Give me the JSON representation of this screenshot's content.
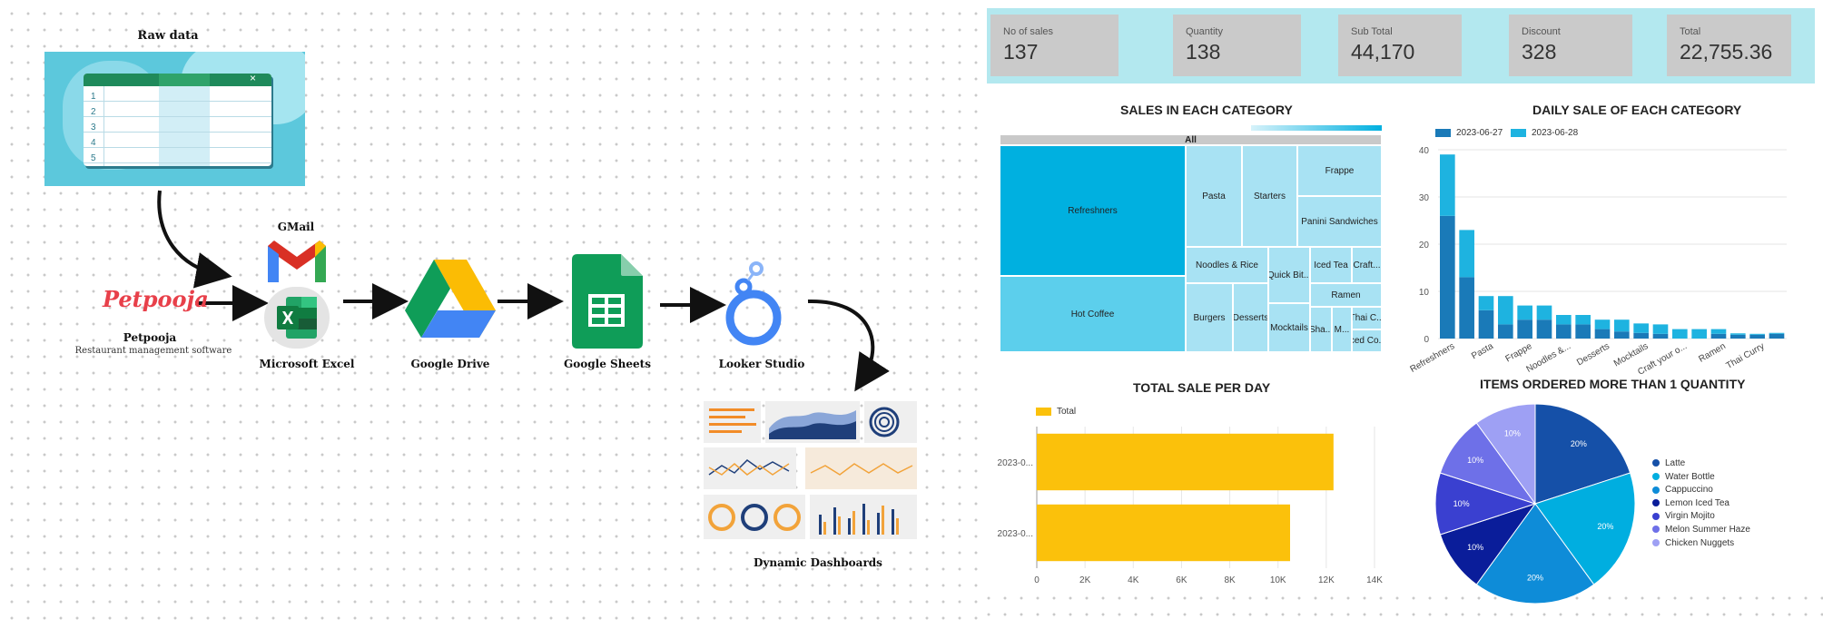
{
  "flow": {
    "raw_data_title": "Raw data",
    "sheet_rows": [
      "1",
      "2",
      "3",
      "4",
      "5"
    ],
    "sheet_close": "×",
    "gmail_label": "GMail",
    "petpooja_logo": "Petpooja",
    "petpooja_name": "Petpooja",
    "petpooja_sub": "Restaurant management software",
    "excel_label": "Microsoft Excel",
    "drive_label": "Google Drive",
    "sheets_label": "Google Sheets",
    "looker_label": "Looker Studio",
    "dashboards_label": "Dynamic Dashboards",
    "icons": [
      "gmail-icon",
      "excel-icon",
      "google-drive-icon",
      "google-sheets-icon",
      "looker-studio-icon"
    ]
  },
  "kpis": [
    {
      "label": "No of sales",
      "value": "137"
    },
    {
      "label": "Quantity",
      "value": "138"
    },
    {
      "label": "Sub Total",
      "value": "44,170"
    },
    {
      "label": "Discount",
      "value": "328"
    },
    {
      "label": "Total",
      "value": "22,755.36"
    }
  ],
  "treemap": {
    "title": "SALES IN EACH CATEGORY",
    "root": "All",
    "cells": [
      {
        "label": "Refreshners"
      },
      {
        "label": "Hot Coffee"
      },
      {
        "label": "Pasta"
      },
      {
        "label": "Starters"
      },
      {
        "label": "Frappe"
      },
      {
        "label": "Panini Sandwiches"
      },
      {
        "label": "Noodles & Rice"
      },
      {
        "label": "Quick Bit..."
      },
      {
        "label": "Iced Tea"
      },
      {
        "label": "Craft..."
      },
      {
        "label": "Burgers"
      },
      {
        "label": "Desserts"
      },
      {
        "label": "Mocktails"
      },
      {
        "label": "Ramen"
      },
      {
        "label": "Sha..."
      },
      {
        "label": "M..."
      },
      {
        "label": "Thai C..."
      },
      {
        "label": "Iced Co..."
      }
    ],
    "colors": {
      "dark": "#00b0e0",
      "mid": "#5ccfec",
      "light": "#a8e2f3"
    }
  },
  "daily": {
    "title": "DAILY SALE OF EACH CATEGORY",
    "chart_data": {
      "type": "bar",
      "stacked": true,
      "series": [
        {
          "name": "2023-06-27",
          "color": "#1a7ab8",
          "values": [
            26,
            13,
            6,
            3,
            4,
            4,
            3,
            3,
            2,
            1.5,
            1.2,
            1,
            0,
            0,
            1,
            0.8,
            0.8,
            1
          ]
        },
        {
          "name": "2023-06-28",
          "color": "#1eb3e0",
          "values": [
            13,
            10,
            3,
            6,
            3,
            3,
            2,
            2,
            2,
            2.5,
            2,
            2,
            2,
            2,
            1,
            0.3,
            0.2,
            0.2
          ]
        }
      ],
      "x_labels": [
        "Refreshners",
        "Pasta",
        "Frappe",
        "Noodles &...",
        "Desserts",
        "Mocktails",
        "Craft your o...",
        "Ramen",
        "Thai Curry"
      ],
      "yticks": [
        "0",
        "10",
        "20",
        "30",
        "40"
      ],
      "ylim": [
        0,
        40
      ],
      "grid": true,
      "legend": "top-left"
    }
  },
  "total_day": {
    "title": "TOTAL SALE PER DAY",
    "chart_data": {
      "type": "bar",
      "orientation": "horizontal",
      "series": [
        {
          "name": "Total",
          "color": "#fbc10b",
          "values": [
            12300,
            10500
          ]
        }
      ],
      "categories": [
        "2023-0...",
        "2023-0..."
      ],
      "xticks": [
        "0",
        "2K",
        "4K",
        "6K",
        "8K",
        "10K",
        "12K",
        "14K"
      ],
      "xlim": [
        0,
        14000
      ],
      "grid": true,
      "legend": "top-left"
    }
  },
  "pie": {
    "title": "ITEMS ORDERED MORE THAN 1 QUANTITY",
    "chart_data": {
      "type": "pie",
      "slices": [
        {
          "label": "Latte",
          "value": 20,
          "color": "#1550a8"
        },
        {
          "label": "Water Bottle",
          "value": 20,
          "color": "#00aee0"
        },
        {
          "label": "Cappuccino",
          "value": 20,
          "color": "#0e8cd8"
        },
        {
          "label": "Lemon Iced Tea",
          "value": 10,
          "color": "#0a1d9a"
        },
        {
          "label": "Virgin Mojito",
          "value": 10,
          "color": "#3a40d0"
        },
        {
          "label": "Melon Summer Haze",
          "value": 10,
          "color": "#6e70e8"
        },
        {
          "label": "Chicken Nuggets",
          "value": 10,
          "color": "#9ea0f4"
        }
      ],
      "labels": [
        "20%",
        "20%",
        "20%",
        "10%",
        "10%",
        "10%",
        "10%"
      ],
      "legend": "right"
    }
  }
}
